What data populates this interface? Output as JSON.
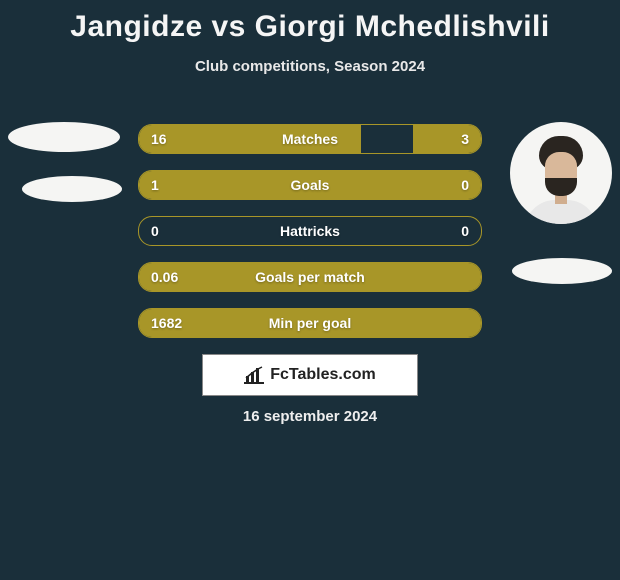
{
  "title": "Jangidze vs Giorgi Mchedlishvili",
  "subtitle": "Club competitions, Season 2024",
  "date": "16 september 2024",
  "logo_text": "FcTables.com",
  "colors": {
    "background": "#1a2f3a",
    "bar_fill": "#a89628",
    "bar_border": "#a89628",
    "text_light": "#ffffff",
    "deco": "#f5f5f3"
  },
  "stats": [
    {
      "label": "Matches",
      "left_val": "16",
      "right_val": "3",
      "left_pct": 65,
      "right_pct": 20
    },
    {
      "label": "Goals",
      "left_val": "1",
      "right_val": "0",
      "left_pct": 100,
      "right_pct": 0
    },
    {
      "label": "Hattricks",
      "left_val": "0",
      "right_val": "0",
      "left_pct": 0,
      "right_pct": 0
    },
    {
      "label": "Goals per match",
      "left_val": "0.06",
      "right_val": "",
      "left_pct": 100,
      "right_pct": 0
    },
    {
      "label": "Min per goal",
      "left_val": "1682",
      "right_val": "",
      "left_pct": 100,
      "right_pct": 0
    }
  ],
  "left_player": {
    "has_photo": false
  },
  "right_player": {
    "has_photo": true
  }
}
